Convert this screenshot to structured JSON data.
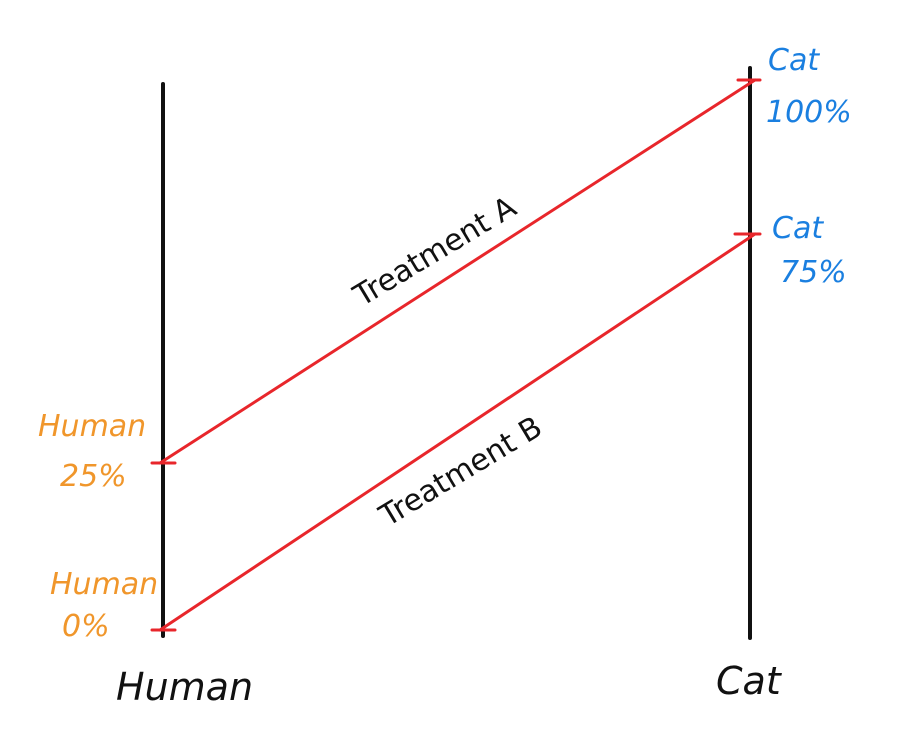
{
  "colors": {
    "axis": "#111111",
    "connector": "#e8262b",
    "human_label": "#f0962b",
    "cat_label": "#1a7fe0"
  },
  "axes": {
    "left_label": "Human",
    "right_label": "Cat"
  },
  "left_markers": [
    {
      "name": "Human",
      "value": "25%"
    },
    {
      "name": "Human",
      "value": "0%"
    }
  ],
  "right_markers": [
    {
      "name": "Cat",
      "value": "100%"
    },
    {
      "name": "Cat",
      "value": "75%"
    }
  ],
  "treatments": [
    {
      "label": "Treatment A",
      "from": "Cat 100%",
      "to": "Human 25%"
    },
    {
      "label": "Treatment B",
      "from": "Human 0%",
      "to": "Cat 75%"
    }
  ]
}
